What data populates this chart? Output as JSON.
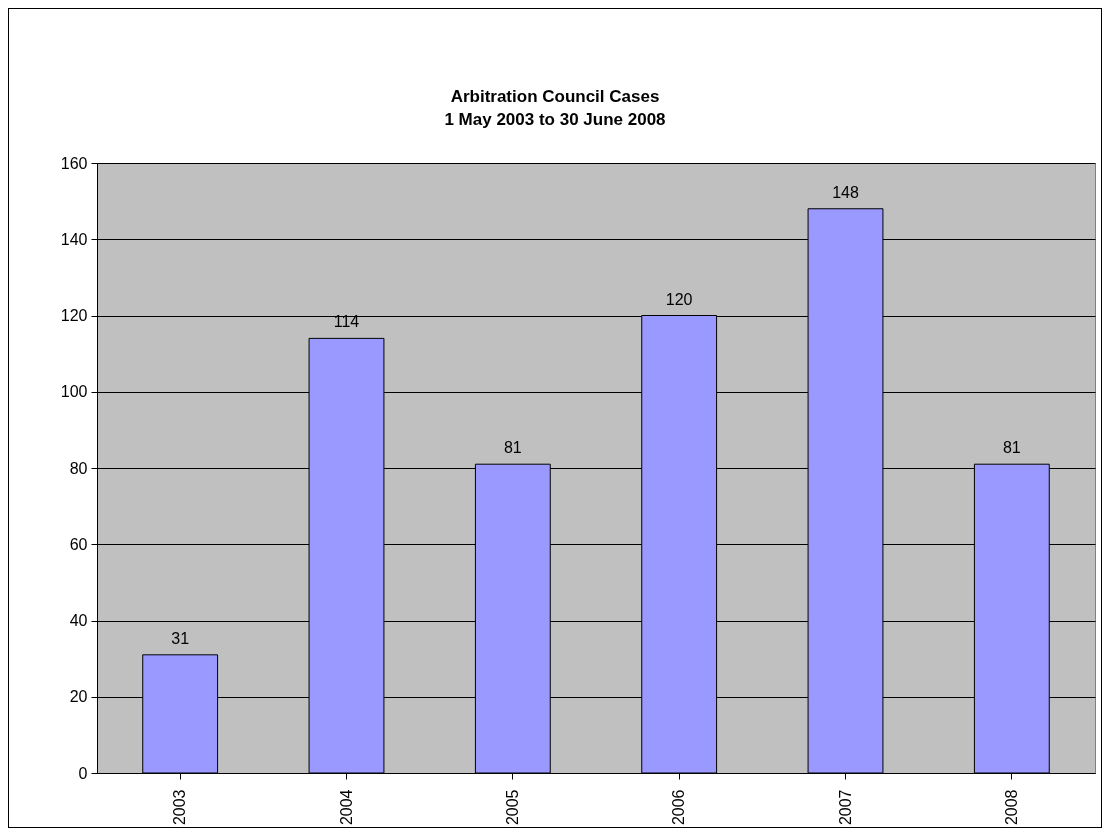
{
  "chart_data": {
    "type": "bar",
    "title": "Arbitration Council Cases",
    "subtitle": "1 May 2003 to 30 June 2008",
    "categories": [
      "2003",
      "2004",
      "2005",
      "2006",
      "2007",
      "2008"
    ],
    "values": [
      31,
      114,
      81,
      120,
      148,
      81
    ],
    "color": "#9999ff",
    "ylim": [
      0,
      160
    ],
    "yticks": [
      0,
      20,
      40,
      60,
      80,
      100,
      120,
      140,
      160
    ],
    "grid": "y",
    "data_labels": true
  }
}
